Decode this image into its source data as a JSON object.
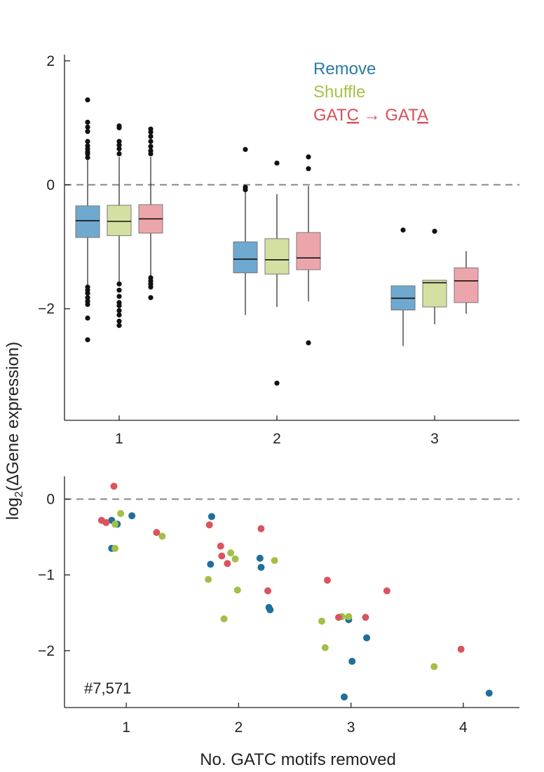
{
  "chart_data": [
    {
      "type": "box",
      "panel": "top",
      "categories": [
        "1",
        "2",
        "3"
      ],
      "ylim": [
        -3.8,
        2.1
      ],
      "yticks": [
        2,
        0,
        -2
      ],
      "reference_line": 0,
      "legend": [
        "Remove",
        "Shuffle",
        "GATC → GATA"
      ],
      "legend_placement": "top-right",
      "series": [
        {
          "name": "Remove",
          "color": "#6fa9cf",
          "boxes": [
            {
              "category": "1",
              "whisker_low": -1.62,
              "q1": -0.85,
              "median": -0.58,
              "q3": -0.34,
              "whisker_high": 0.4,
              "outliers": [
                1.37,
                1.01,
                0.93,
                0.86,
                0.7,
                0.63,
                0.58,
                0.53,
                0.5,
                0.44,
                -1.65,
                -1.7,
                -1.75,
                -1.82,
                -1.88,
                -1.93,
                -2.15,
                -2.5
              ]
            },
            {
              "category": "2",
              "whisker_low": -2.1,
              "q1": -1.42,
              "median": -1.2,
              "q3": -0.92,
              "whisker_high": -0.1,
              "outliers": [
                0.57,
                -0.04,
                -0.08
              ]
            },
            {
              "category": "3",
              "whisker_low": -2.6,
              "q1": -2.02,
              "median": -1.83,
              "q3": -1.63,
              "whisker_high": -1.63,
              "outliers": [
                -0.73
              ]
            }
          ]
        },
        {
          "name": "Shuffle",
          "color": "#d4e0a2",
          "boxes": [
            {
              "category": "1",
              "whisker_low": -1.6,
              "q1": -0.82,
              "median": -0.59,
              "q3": -0.33,
              "whisker_high": 0.45,
              "outliers": [
                0.95,
                0.92,
                0.7,
                0.64,
                0.58,
                0.5,
                -1.6,
                -1.7,
                -1.8,
                -1.9,
                -1.95,
                -2.03,
                -2.1,
                -2.2,
                -2.27
              ]
            },
            {
              "category": "2",
              "whisker_low": -1.97,
              "q1": -1.44,
              "median": -1.21,
              "q3": -0.87,
              "whisker_high": -0.15,
              "outliers": [
                0.35,
                -3.2
              ]
            },
            {
              "category": "3",
              "whisker_low": -2.25,
              "q1": -1.97,
              "median": -1.58,
              "q3": -1.54,
              "whisker_high": -1.54,
              "outliers": [
                -0.75
              ]
            }
          ]
        },
        {
          "name": "GATC → GATA",
          "color": "#eca6ab",
          "boxes": [
            {
              "category": "1",
              "whisker_low": -1.5,
              "q1": -0.78,
              "median": -0.55,
              "q3": -0.32,
              "whisker_high": 0.45,
              "outliers": [
                0.9,
                0.85,
                0.78,
                0.7,
                0.62,
                0.55,
                0.5,
                -1.5,
                -1.55,
                -1.6,
                -1.65,
                -1.82
              ]
            },
            {
              "category": "2",
              "whisker_low": -1.88,
              "q1": -1.37,
              "median": -1.18,
              "q3": -0.77,
              "whisker_high": -0.02,
              "outliers": [
                0.45,
                0.26,
                -2.55
              ]
            },
            {
              "category": "3",
              "whisker_low": -2.08,
              "q1": -1.9,
              "median": -1.55,
              "q3": -1.34,
              "whisker_high": -1.07,
              "outliers": []
            }
          ]
        }
      ]
    },
    {
      "type": "scatter",
      "panel": "bottom",
      "xlabel": "No. GATC motifs removed",
      "xlim": [
        0.45,
        4.5
      ],
      "ylim": [
        -2.75,
        0.3
      ],
      "xticks": [
        1,
        2,
        3,
        4
      ],
      "yticks": [
        0,
        -1,
        -2
      ],
      "reference_line": 0,
      "annotation": "#7,571",
      "series": [
        {
          "name": "Remove",
          "color": "#1f6e9c",
          "points": [
            [
              0.87,
              -0.28
            ],
            [
              0.92,
              -0.33
            ],
            [
              1.05,
              -0.22
            ],
            [
              0.87,
              -0.65
            ],
            [
              1.76,
              -0.23
            ],
            [
              1.75,
              -0.86
            ],
            [
              2.19,
              -0.78
            ],
            [
              2.2,
              -0.9
            ],
            [
              2.27,
              -1.43
            ],
            [
              2.28,
              -1.46
            ],
            [
              2.98,
              -1.59
            ],
            [
              3.01,
              -2.14
            ],
            [
              3.14,
              -1.83
            ],
            [
              2.94,
              -2.61
            ],
            [
              4.23,
              -2.56
            ]
          ]
        },
        {
          "name": "Shuffle",
          "color": "#a3bf48",
          "points": [
            [
              0.95,
              -0.19
            ],
            [
              0.9,
              -0.33
            ],
            [
              0.9,
              -0.65
            ],
            [
              1.32,
              -0.49
            ],
            [
              1.73,
              -1.06
            ],
            [
              1.87,
              -1.58
            ],
            [
              1.93,
              -0.71
            ],
            [
              1.97,
              -0.79
            ],
            [
              1.99,
              -1.2
            ],
            [
              2.32,
              -0.81
            ],
            [
              2.74,
              -1.61
            ],
            [
              2.77,
              -1.96
            ],
            [
              2.92,
              -1.55
            ],
            [
              2.98,
              -1.55
            ],
            [
              3.74,
              -2.21
            ]
          ]
        },
        {
          "name": "GATC → GATA",
          "color": "#d9545c",
          "points": [
            [
              0.89,
              0.17
            ],
            [
              0.78,
              -0.28
            ],
            [
              0.82,
              -0.31
            ],
            [
              1.27,
              -0.44
            ],
            [
              1.74,
              -0.34
            ],
            [
              1.84,
              -0.62
            ],
            [
              1.85,
              -0.75
            ],
            [
              1.9,
              -0.85
            ],
            [
              2.2,
              -0.39
            ],
            [
              2.26,
              -1.21
            ],
            [
              2.79,
              -1.07
            ],
            [
              2.89,
              -1.56
            ],
            [
              3.13,
              -1.56
            ],
            [
              3.32,
              -1.21
            ],
            [
              3.98,
              -1.98
            ]
          ]
        }
      ]
    }
  ],
  "shared_ylabel": {
    "prefix": "log",
    "subscript": "2",
    "suffix": "(ΔGene expression)"
  },
  "legend_entries": [
    {
      "text": "Remove",
      "color": "#2a7aa8"
    },
    {
      "text": "Shuffle",
      "color": "#a7c24a"
    },
    {
      "pre": "GAT",
      "underlined_a": "C",
      "mid": " → GAT",
      "underlined_b": "A",
      "color": "#d64f5b"
    }
  ]
}
